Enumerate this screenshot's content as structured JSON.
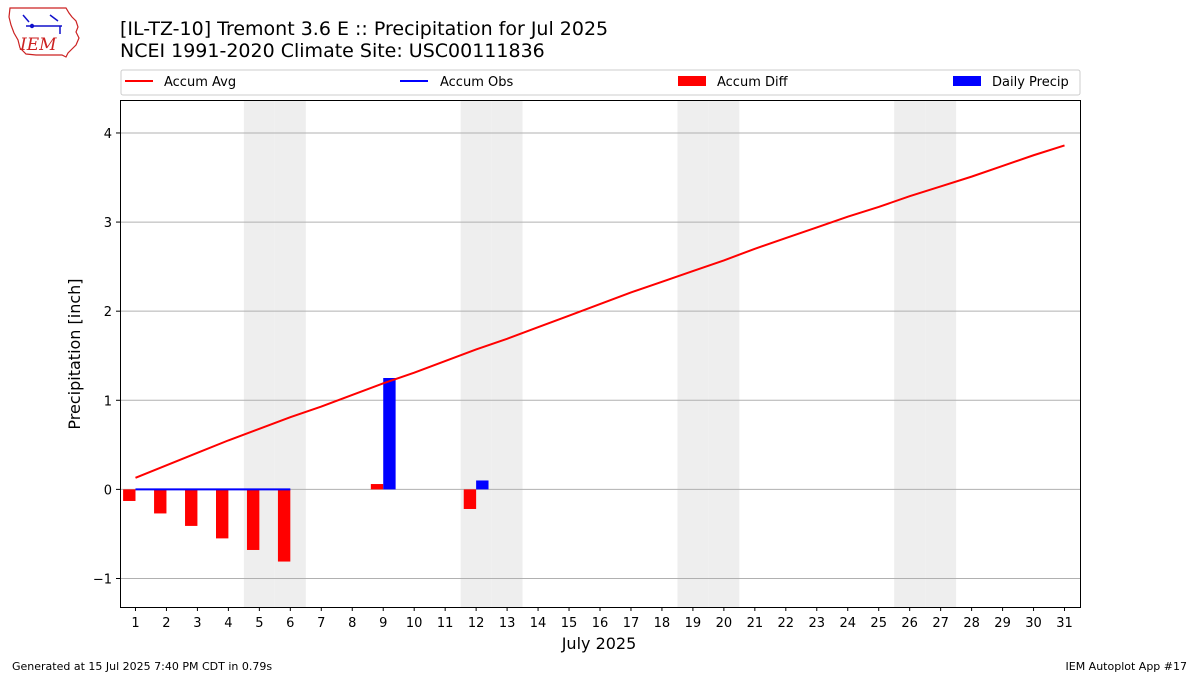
{
  "header": {
    "title_line1": "[IL-TZ-10] Tremont 3.6 E :: Precipitation for Jul 2025",
    "title_line2": "NCEI 1991-2020 Climate Site: USC00111836",
    "logo_text": "IEM"
  },
  "footer": {
    "left": "Generated at 15 Jul 2025 7:40 PM CDT in 0.79s",
    "right": "IEM Autoplot App #17"
  },
  "colors": {
    "accum_avg": "#ff0000",
    "accum_obs": "#0000ff",
    "accum_diff": "#ff0000",
    "daily_precip": "#0000ff",
    "weekend_shade": "#eeeeee",
    "grid": "#b0b0b0"
  },
  "chart_data": {
    "type": "bar",
    "title": "[IL-TZ-10] Tremont 3.6 E :: Precipitation for Jul 2025",
    "subtitle": "NCEI 1991-2020 Climate Site: USC00111836",
    "xlabel": "July 2025",
    "ylabel": "Precipitation [inch]",
    "xlim": [
      0.5,
      31.5
    ],
    "ylim": [
      -1.32,
      4.37
    ],
    "yticks": [
      -1,
      0,
      1,
      2,
      3,
      4
    ],
    "ytick_labels": [
      "−1",
      "0",
      "1",
      "2",
      "3",
      "4"
    ],
    "grid": "horizontal",
    "legend_position": "top",
    "legend": [
      "Accum Avg",
      "Accum Obs",
      "Accum Diff",
      "Daily Precip"
    ],
    "categories": [
      "1",
      "2",
      "3",
      "4",
      "5",
      "6",
      "7",
      "8",
      "9",
      "10",
      "11",
      "12",
      "13",
      "14",
      "15",
      "16",
      "17",
      "18",
      "19",
      "20",
      "21",
      "22",
      "23",
      "24",
      "25",
      "26",
      "27",
      "28",
      "29",
      "30",
      "31"
    ],
    "weekend_days": [
      5,
      6,
      12,
      13,
      19,
      20,
      26,
      27
    ],
    "series": [
      {
        "name": "Accum Avg",
        "kind": "line",
        "x": [
          1,
          2,
          3,
          4,
          5,
          6,
          7,
          8,
          9,
          10,
          11,
          12,
          13,
          14,
          15,
          16,
          17,
          18,
          19,
          20,
          21,
          22,
          23,
          24,
          25,
          26,
          27,
          28,
          29,
          30,
          31
        ],
        "values": [
          0.13,
          0.27,
          0.41,
          0.55,
          0.68,
          0.81,
          0.93,
          1.06,
          1.19,
          1.31,
          1.44,
          1.57,
          1.69,
          1.82,
          1.95,
          2.08,
          2.21,
          2.33,
          2.45,
          2.57,
          2.7,
          2.82,
          2.94,
          3.06,
          3.17,
          3.29,
          3.4,
          3.51,
          3.63,
          3.75,
          3.86
        ]
      },
      {
        "name": "Accum Obs",
        "kind": "line",
        "x": [
          1,
          2,
          3,
          4,
          5,
          6
        ],
        "values": [
          0,
          0,
          0,
          0,
          0,
          0
        ]
      },
      {
        "name": "Accum Diff",
        "kind": "bar",
        "x": [
          1,
          2,
          3,
          4,
          5,
          6,
          9,
          12
        ],
        "values": [
          -0.13,
          -0.27,
          -0.41,
          -0.55,
          -0.68,
          -0.81,
          0.06,
          -0.22
        ]
      },
      {
        "name": "Daily Precip",
        "kind": "bar",
        "x": [
          9,
          12
        ],
        "values": [
          1.25,
          0.1
        ]
      }
    ]
  }
}
